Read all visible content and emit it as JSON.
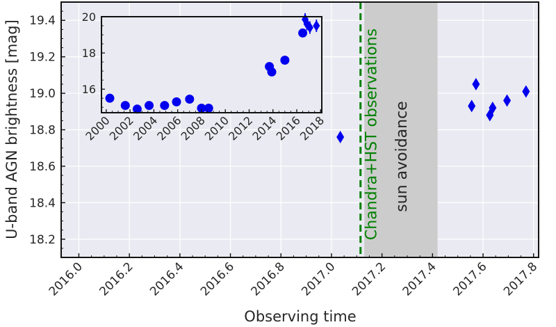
{
  "chart_data": [
    {
      "type": "scatter",
      "title": "",
      "xlabel": "Observing time",
      "ylabel": "U-band AGN brightness [mag]",
      "xlim": [
        2015.93,
        2017.82
      ],
      "ylim": [
        19.5,
        18.1
      ],
      "y_inverted": true,
      "x_ticks": [
        "2016.0",
        "2016.2",
        "2016.4",
        "2016.6",
        "2016.8",
        "2017.0",
        "2017.2",
        "2017.4",
        "2017.6",
        "2017.8"
      ],
      "y_ticks": [
        "18.2",
        "18.4",
        "18.6",
        "18.8",
        "19.0",
        "19.2",
        "19.4"
      ],
      "grid": true,
      "marker": "diamond",
      "marker_color": "#0000ee",
      "series": [
        {
          "points": [
            {
              "x": 2016.585,
              "y": 19.14,
              "err": 0.04
            },
            {
              "x": 2016.665,
              "y": 19.19,
              "err": 0.04
            },
            {
              "x": 2016.705,
              "y": 19.19,
              "err": 0.04
            },
            {
              "x": 2016.725,
              "y": 19.21,
              "err": 0.04
            },
            {
              "x": 2016.737,
              "y": 19.23,
              "err": 0.04
            },
            {
              "x": 2016.768,
              "y": 19.31,
              "err": 0.04
            },
            {
              "x": 2016.808,
              "y": 19.23,
              "err": 0.04
            },
            {
              "x": 2016.845,
              "y": 19.16,
              "err": 0.04
            },
            {
              "x": 2016.905,
              "y": 19.1,
              "err": 0.04
            },
            {
              "x": 2016.912,
              "y": 19.08,
              "err": 0.04
            },
            {
              "x": 2016.945,
              "y": 18.99,
              "err": 0.04
            },
            {
              "x": 2017.035,
              "y": 18.76,
              "err": 0.04
            },
            {
              "x": 2017.555,
              "y": 18.93,
              "err": 0.04
            },
            {
              "x": 2017.572,
              "y": 19.05,
              "err": 0.04
            },
            {
              "x": 2017.627,
              "y": 18.88,
              "err": 0.04
            },
            {
              "x": 2017.638,
              "y": 18.92,
              "err": 0.04
            },
            {
              "x": 2017.695,
              "y": 18.96,
              "err": 0.04
            },
            {
              "x": 2017.77,
              "y": 19.01,
              "err": 0.04
            }
          ]
        }
      ],
      "annotations": [
        {
          "type": "vline",
          "x": 2017.115,
          "color": "#008000",
          "style": "dashed",
          "text": "Chandra+HST observations"
        },
        {
          "type": "shaded_region",
          "x_range": [
            2017.13,
            2017.42
          ],
          "color": "#cccccc",
          "text": "sun avoidance"
        }
      ]
    },
    {
      "type": "scatter",
      "title": "",
      "xlabel": "",
      "ylabel": "",
      "xlim": [
        1999.6,
        2018.1
      ],
      "ylim": [
        20,
        14.7
      ],
      "y_inverted": true,
      "x_ticks": [
        "2000",
        "2002",
        "2004",
        "2006",
        "2008",
        "2010",
        "2012",
        "2014",
        "2016",
        "2018"
      ],
      "y_ticks": [
        "16",
        "18",
        "20"
      ],
      "grid": false,
      "series": [
        {
          "marker": "circle",
          "points": [
            {
              "x": 2000.3,
              "y": 15.5
            },
            {
              "x": 2001.6,
              "y": 15.1
            },
            {
              "x": 2002.6,
              "y": 14.9
            },
            {
              "x": 2003.6,
              "y": 15.1
            },
            {
              "x": 2004.9,
              "y": 15.1
            },
            {
              "x": 2005.9,
              "y": 15.3
            },
            {
              "x": 2007.0,
              "y": 15.45
            },
            {
              "x": 2008.0,
              "y": 14.95
            },
            {
              "x": 2008.6,
              "y": 14.95
            },
            {
              "x": 2013.7,
              "y": 17.25
            },
            {
              "x": 2013.9,
              "y": 16.95
            },
            {
              "x": 2015.0,
              "y": 17.6
            },
            {
              "x": 2016.5,
              "y": 19.1
            }
          ]
        },
        {
          "marker": "diamond",
          "points": [
            {
              "x": 2016.7,
              "y": 19.85
            },
            {
              "x": 2016.85,
              "y": 19.6
            },
            {
              "x": 2017.1,
              "y": 19.4
            },
            {
              "x": 2017.65,
              "y": 19.5
            }
          ]
        }
      ],
      "highlight_box": {
        "x_range": [
          2016.0,
          2017.9
        ],
        "y_range": [
          18.9,
          20.3
        ],
        "color": "#aaaaaa"
      }
    }
  ]
}
